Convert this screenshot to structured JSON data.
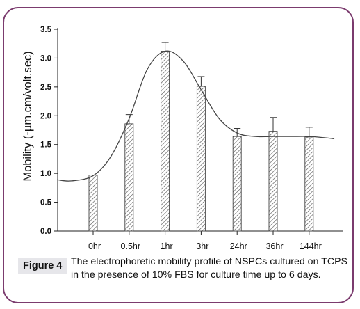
{
  "figure": {
    "label": "Figure 4",
    "caption": "The electrophoretic mobility profile of NSPCs cultured on TCPS in the presence of 10% FBS for culture time up to 6 days."
  },
  "colors": {
    "frame": "#7b3b6e",
    "bars": "#555555",
    "curve": "#444444"
  },
  "chart_data": {
    "type": "bar",
    "categories": [
      "0hr",
      "0.5hr",
      "1hr",
      "3hr",
      "24hr",
      "36hr",
      "144hr"
    ],
    "values": [
      0.97,
      1.86,
      3.12,
      2.51,
      1.64,
      1.73,
      1.63
    ],
    "errors": [
      0.0,
      0.16,
      0.15,
      0.17,
      0.14,
      0.24,
      0.17
    ],
    "ylabel": "Mobility (-µm.cm/volt.sec)",
    "xlabel": "",
    "ylim": [
      0,
      3.5
    ],
    "yticks": [
      "0.0",
      "0.5",
      "1.0",
      "1.5",
      "2.0",
      "2.5",
      "3.0",
      "3.5"
    ],
    "bar_pattern": "diagonal hatching",
    "fit_curve": {
      "note_shape": "smooth fitted curve over bars",
      "x_index": [
        -1.0,
        -0.6,
        0.0,
        0.5,
        1.0,
        1.5,
        2.0,
        2.5,
        3.0,
        3.5,
        4.0,
        4.5,
        5.0,
        5.5,
        6.0,
        6.4,
        6.7
      ],
      "y": [
        0.89,
        0.87,
        0.96,
        1.3,
        1.95,
        2.8,
        3.12,
        2.95,
        2.45,
        1.95,
        1.7,
        1.64,
        1.64,
        1.64,
        1.64,
        1.62,
        1.6
      ]
    }
  }
}
